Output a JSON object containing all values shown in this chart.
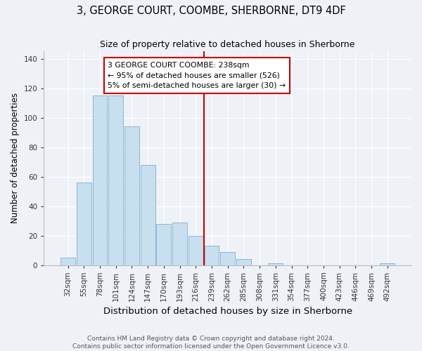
{
  "title": "3, GEORGE COURT, COOMBE, SHERBORNE, DT9 4DF",
  "subtitle": "Size of property relative to detached houses in Sherborne",
  "xlabel": "Distribution of detached houses by size in Sherborne",
  "ylabel": "Number of detached properties",
  "bar_labels": [
    "32sqm",
    "55sqm",
    "78sqm",
    "101sqm",
    "124sqm",
    "147sqm",
    "170sqm",
    "193sqm",
    "216sqm",
    "239sqm",
    "262sqm",
    "285sqm",
    "308sqm",
    "331sqm",
    "354sqm",
    "377sqm",
    "400sqm",
    "423sqm",
    "446sqm",
    "469sqm",
    "492sqm"
  ],
  "bar_heights": [
    5,
    56,
    115,
    115,
    94,
    68,
    28,
    29,
    20,
    13,
    9,
    4,
    0,
    1,
    0,
    0,
    0,
    0,
    0,
    0,
    1
  ],
  "bar_color": "#c8dff0",
  "bar_edge_color": "#7ab0cc",
  "vline_color": "#cc0000",
  "annotation_text": "3 GEORGE COURT COOMBE: 238sqm\n← 95% of detached houses are smaller (526)\n5% of semi-detached houses are larger (30) →",
  "annotation_box_color": "#ffffff",
  "annotation_box_edge_color": "#cc0000",
  "ylim": [
    0,
    145
  ],
  "yticks": [
    0,
    20,
    40,
    60,
    80,
    100,
    120,
    140
  ],
  "footer_line1": "Contains HM Land Registry data © Crown copyright and database right 2024.",
  "footer_line2": "Contains public sector information licensed under the Open Government Licence v3.0.",
  "background_color": "#eef2f7",
  "grid_color": "#ffffff",
  "title_fontsize": 10.5,
  "xlabel_fontsize": 9.5,
  "ylabel_fontsize": 8.5,
  "tick_fontsize": 7.5,
  "footer_fontsize": 6.5
}
